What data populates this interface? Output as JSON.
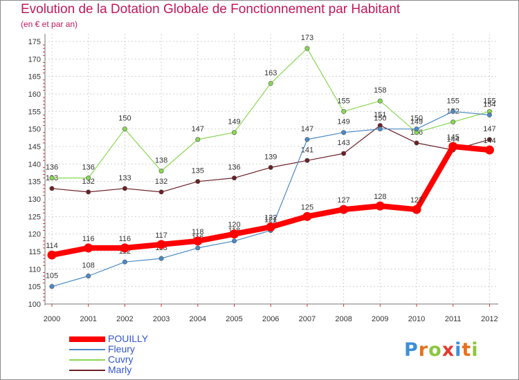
{
  "header": {
    "title": "Evolution de la Dotation Globale de Fonctionnement par Habitant",
    "subtitle": "(en € et par an)"
  },
  "logo": {
    "text": "Proxiti",
    "letter_colors": [
      "#3d8fd8",
      "#e8711a",
      "#8bc63e",
      "#e33b2e",
      "#3d8fd8",
      "#e8711a",
      "#8bc63e"
    ]
  },
  "chart_data": {
    "type": "line",
    "title": "Evolution de la Dotation Globale de Fonctionnement par Habitant",
    "subtitle": "(en € et par an)",
    "x": [
      "2000",
      "2001",
      "2002",
      "2003",
      "2004",
      "2005",
      "2006",
      "2007",
      "2008",
      "2009",
      "2010",
      "2011",
      "2012"
    ],
    "ylim": [
      100,
      175
    ],
    "yticks": [
      100,
      105,
      110,
      115,
      120,
      125,
      130,
      135,
      140,
      145,
      150,
      155,
      160,
      165,
      170,
      175
    ],
    "grid": true,
    "legend_position": "bottom-left",
    "series": [
      {
        "name": "POUILLY",
        "color": "#ff0000",
        "values": [
          114,
          116,
          116,
          117,
          118,
          120,
          122,
          125,
          127,
          128,
          127,
          145,
          144
        ],
        "emphasized": true
      },
      {
        "name": "Fleury",
        "color": "#4a8ac4",
        "values": [
          105,
          108,
          112,
          113,
          116,
          118,
          121,
          147,
          149,
          150,
          150,
          155,
          154
        ]
      },
      {
        "name": "Cuvry",
        "color": "#88d850",
        "values": [
          136,
          136,
          150,
          138,
          147,
          149,
          163,
          173,
          155,
          158,
          149,
          152,
          155
        ]
      },
      {
        "name": "Marly",
        "color": "#6b1f26",
        "values": [
          133,
          132,
          133,
          132,
          135,
          136,
          139,
          141,
          143,
          151,
          146,
          144,
          147
        ]
      }
    ]
  }
}
